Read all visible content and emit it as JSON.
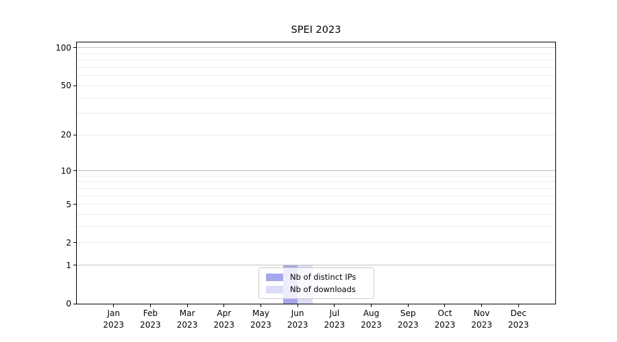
{
  "title": "SPEI 2023",
  "legend": [
    {
      "label": "Nb of distinct IPs",
      "color": "#a6a6ec"
    },
    {
      "label": "Nb of downloads",
      "color": "#dcdcf7"
    }
  ],
  "colors": {
    "distinct_ips_bar": "#a6a6ec",
    "downloads_bar": "#dcdcf7",
    "major_gridline": "#c2c2c2",
    "minor_gridline": "#eaeaea",
    "axis": "#000000",
    "legend_border": "#cccccc"
  },
  "chart_data": {
    "type": "bar",
    "title": "SPEI 2023",
    "categories": [
      "Jan 2023",
      "Feb 2023",
      "Mar 2023",
      "Apr 2023",
      "May 2023",
      "Jun 2023",
      "Jul 2023",
      "Aug 2023",
      "Sep 2023",
      "Oct 2023",
      "Nov 2023",
      "Dec 2023"
    ],
    "series": [
      {
        "name": "Nb of distinct IPs",
        "color": "#a6a6ec",
        "values": [
          0,
          0,
          0,
          0,
          0,
          1,
          0,
          0,
          0,
          0,
          0,
          0
        ]
      },
      {
        "name": "Nb of downloads",
        "color": "#dcdcf7",
        "values": [
          0,
          0,
          0,
          0,
          0,
          1,
          0,
          0,
          0,
          0,
          0,
          0
        ]
      }
    ],
    "xlabel": "",
    "ylabel": "",
    "yscale": "log10(1+y)",
    "ylim": [
      0,
      110.4
    ],
    "yticks": [
      0,
      1,
      2,
      5,
      10,
      20,
      50,
      100
    ],
    "major_gridlines": [
      1,
      10,
      100
    ],
    "minor_gridlines": [
      2,
      3,
      4,
      5,
      6,
      7,
      8,
      9,
      20,
      30,
      40,
      50,
      60,
      70,
      80,
      90
    ],
    "grid": "horizontal",
    "legend_position": "lower center"
  }
}
